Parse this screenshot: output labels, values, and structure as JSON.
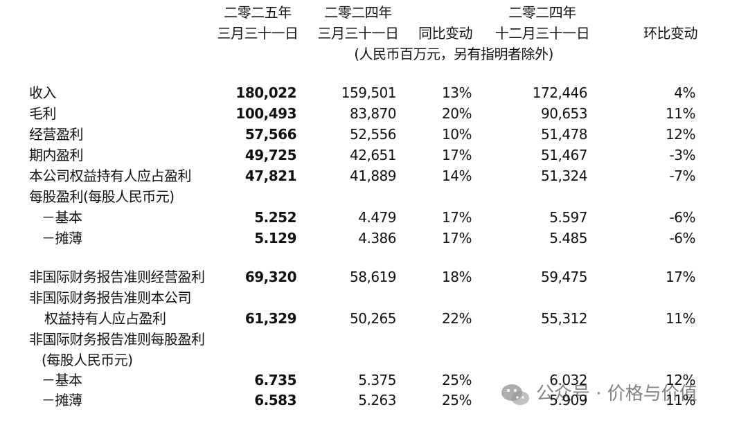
{
  "header": {
    "columns": [
      {
        "lines": [
          "二零二五年",
          "三月三十一日"
        ]
      },
      {
        "lines": [
          "二零二四年",
          "三月三十一日"
        ]
      },
      {
        "lines": [
          "同比变动"
        ]
      },
      {
        "lines": [
          "二零二四年",
          "十二月三十一日"
        ]
      },
      {
        "lines": [
          "环比变动"
        ]
      }
    ],
    "unit": "(人民币百万元，另有指明者除外)"
  },
  "table": {
    "rows": [
      {
        "label": "收入",
        "values": [
          "180,022",
          "159,501",
          "13%",
          "172,446",
          "4%"
        ]
      },
      {
        "label": "毛利",
        "values": [
          "100,493",
          "83,870",
          "20%",
          "90,653",
          "11%"
        ]
      },
      {
        "label": "经营盈利",
        "values": [
          "57,566",
          "52,556",
          "10%",
          "51,478",
          "12%"
        ]
      },
      {
        "label": "期内盈利",
        "values": [
          "49,725",
          "42,651",
          "17%",
          "51,467",
          "-3%"
        ]
      },
      {
        "label": "本公司权益持有人应占盈利",
        "values": [
          "47,821",
          "41,889",
          "14%",
          "51,324",
          "-7%"
        ]
      },
      {
        "label": "每股盈利(每股人民币元)"
      },
      {
        "label": "－基本",
        "values": [
          "5.252",
          "4.479",
          "17%",
          "5.597",
          "-6%"
        ]
      },
      {
        "label": "－摊薄",
        "values": [
          "5.129",
          "4.386",
          "17%",
          "5.485",
          "-6%"
        ]
      },
      {
        "label": "非国际财务报告准则经营盈利",
        "values": [
          "69,320",
          "58,619",
          "18%",
          "59,475",
          "17%"
        ]
      },
      {
        "label": "非国际财务报告准则本公司"
      },
      {
        "label": "权益持有人应占盈利",
        "values": [
          "61,329",
          "50,265",
          "22%",
          "55,312",
          "11%"
        ]
      },
      {
        "label": "非国际财务报告准则每股盈利"
      },
      {
        "label": "(每股人民币元)"
      },
      {
        "label": "－基本",
        "values": [
          "6.735",
          "5.375",
          "25%",
          "6.032",
          "12%"
        ]
      },
      {
        "label": "－摊薄",
        "values": [
          "6.583",
          "5.263",
          "25%",
          "5.909",
          "11%"
        ]
      }
    ]
  },
  "watermark": "公众号 · 价格与价值"
}
